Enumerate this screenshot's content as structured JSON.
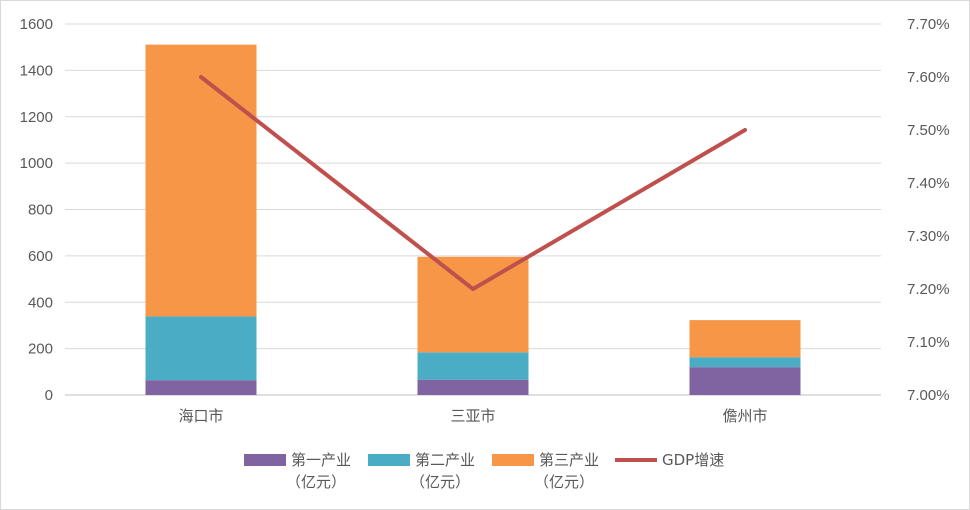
{
  "chart_data": {
    "type": "bar",
    "stacked": true,
    "categories": [
      "海口市",
      "三亚市",
      "儋州市"
    ],
    "series": [
      {
        "name": "第一产业（亿元）",
        "name_lines": [
          "第一产业",
          "（亿元）"
        ],
        "color": "#8064a2",
        "axis": "left",
        "values": [
          64,
          66,
          120
        ]
      },
      {
        "name": "第二产业（亿元）",
        "name_lines": [
          "第二产业",
          "（亿元）"
        ],
        "color": "#4bacc6",
        "axis": "left",
        "values": [
          275,
          118,
          43
        ]
      },
      {
        "name": "第三产业（亿元）",
        "name_lines": [
          "第三产业",
          "（亿元）"
        ],
        "color": "#f79646",
        "axis": "left",
        "values": [
          1172,
          412,
          160
        ]
      },
      {
        "name": "GDP增速",
        "name_lines": [
          "GDP增速"
        ],
        "type": "line",
        "color": "#c0504d",
        "axis": "right",
        "values": [
          7.6,
          7.2,
          7.5
        ]
      }
    ],
    "y_left": {
      "min": 0,
      "max": 1600,
      "step": 200,
      "tick_labels": [
        "0",
        "200",
        "400",
        "600",
        "800",
        "1000",
        "1200",
        "1400",
        "1600"
      ]
    },
    "y_right": {
      "min": 7.0,
      "max": 7.7,
      "step": 0.1,
      "tick_labels": [
        "7.00%",
        "7.10%",
        "7.20%",
        "7.30%",
        "7.40%",
        "7.50%",
        "7.60%",
        "7.70%"
      ]
    },
    "grid": true,
    "legend_position": "bottom"
  }
}
